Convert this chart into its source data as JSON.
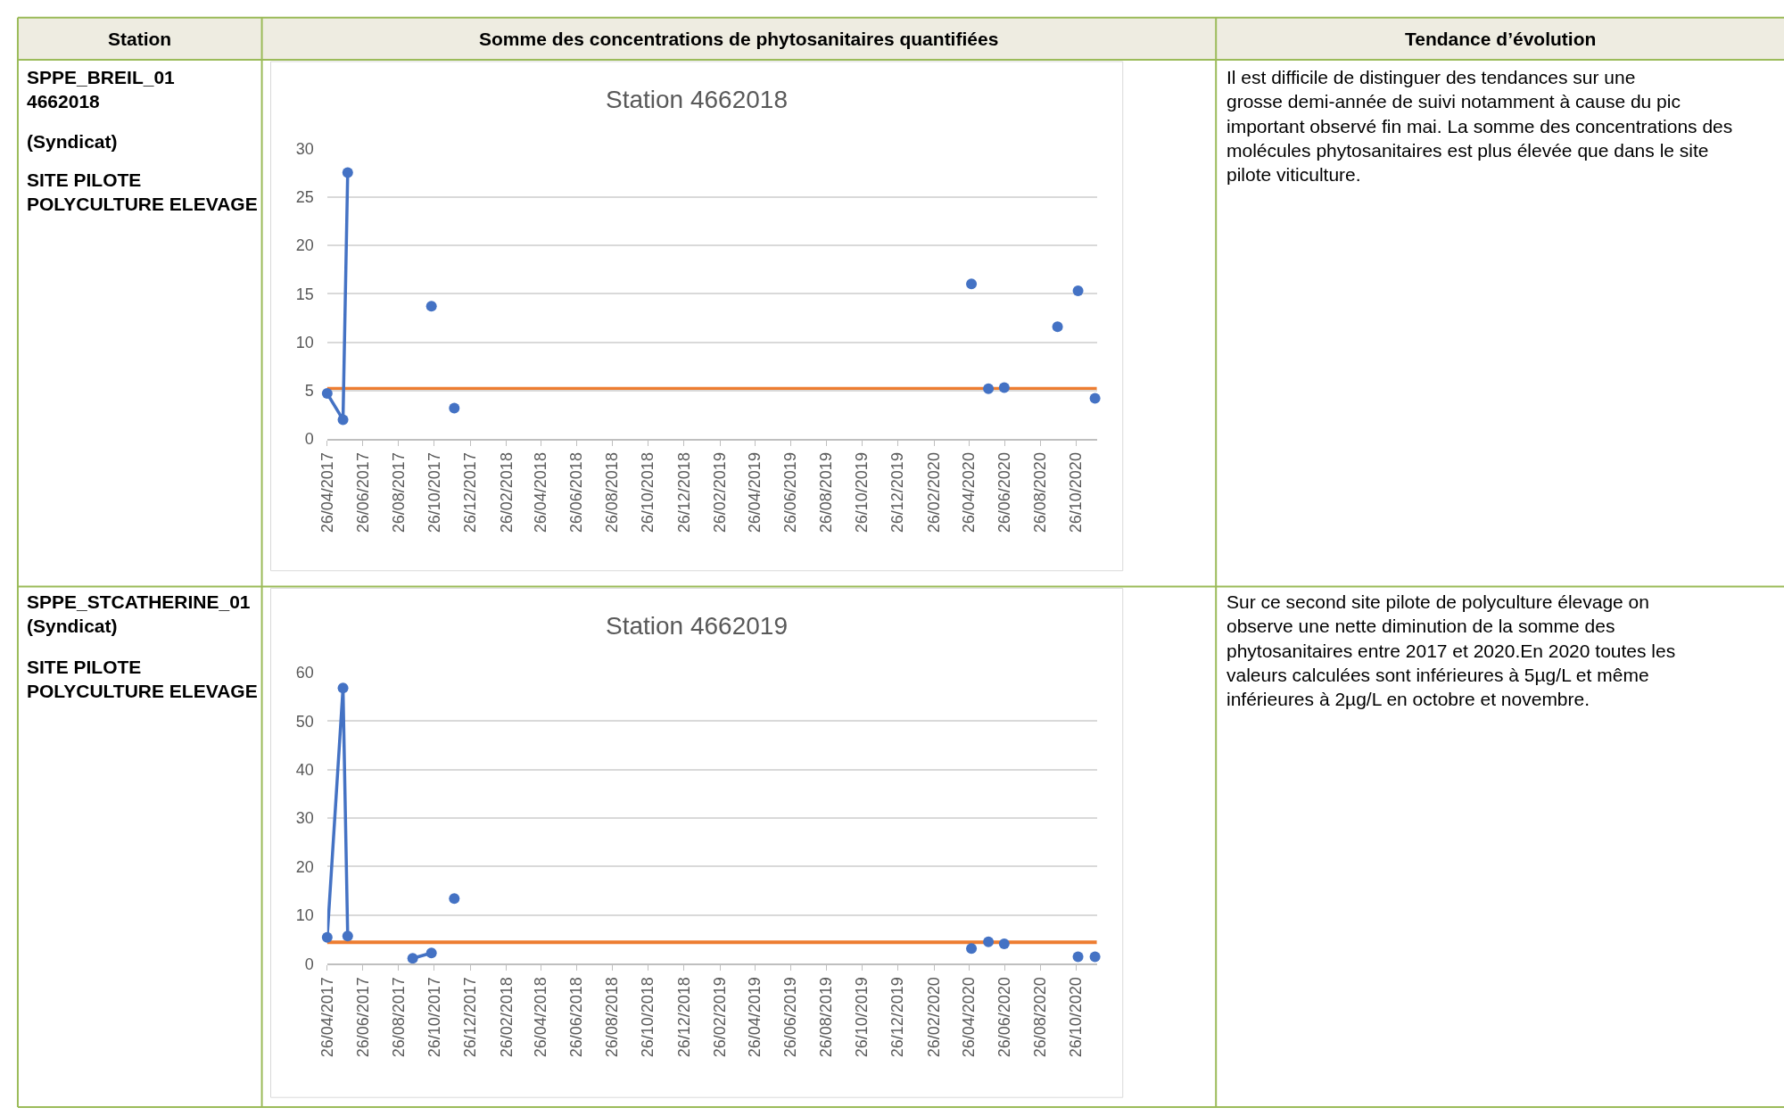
{
  "chart_data": [
    {
      "type": "other",
      "annotations": [
        "Station",
        "Somme des concentrations de phytosanitaires quantifiées",
        "Tendance d’évolution"
      ]
    },
    {
      "type": "other",
      "annotations": [
        "SPPE_BREIL_01 4662018",
        "(Syndicat)",
        "SITE PILOTE POLYCULTURE ELEVAGE"
      ]
    },
    {
      "type": "line",
      "title": "Station 4662018",
      "marker": "circle",
      "grid": "y",
      "ylim": [
        0,
        30
      ],
      "yticks": [
        0,
        5,
        10,
        15,
        20,
        25,
        30
      ],
      "xlim": [
        "2017-04-26",
        "2020-11-30"
      ],
      "xticks": [
        {
          "value": "2017-04-26",
          "label": "26/04/2017"
        },
        {
          "value": "2017-06-26",
          "label": "26/06/2017"
        },
        {
          "value": "2017-08-26",
          "label": "26/08/2017"
        },
        {
          "value": "2017-10-26",
          "label": "26/10/2017"
        },
        {
          "value": "2017-12-26",
          "label": "26/12/2017"
        },
        {
          "value": "2018-02-26",
          "label": "26/02/2018"
        },
        {
          "value": "2018-04-26",
          "label": "26/04/2018"
        },
        {
          "value": "2018-06-26",
          "label": "26/06/2018"
        },
        {
          "value": "2018-08-26",
          "label": "26/08/2018"
        },
        {
          "value": "2018-10-26",
          "label": "26/10/2018"
        },
        {
          "value": "2018-12-26",
          "label": "26/12/2018"
        },
        {
          "value": "2019-02-26",
          "label": "26/02/2019"
        },
        {
          "value": "2019-04-26",
          "label": "26/04/2019"
        },
        {
          "value": "2019-06-26",
          "label": "26/06/2019"
        },
        {
          "value": "2019-08-26",
          "label": "26/08/2019"
        },
        {
          "value": "2019-10-26",
          "label": "26/10/2019"
        },
        {
          "value": "2019-12-26",
          "label": "26/12/2019"
        },
        {
          "value": "2020-02-26",
          "label": "26/02/2020"
        },
        {
          "value": "2020-04-26",
          "label": "26/04/2020"
        },
        {
          "value": "2020-06-26",
          "label": "26/06/2020"
        },
        {
          "value": "2020-08-26",
          "label": "26/08/2020"
        },
        {
          "value": "2020-10-26",
          "label": "26/10/2020"
        }
      ],
      "series": [
        {
          "type": "line",
          "color": "#4472c4",
          "x": [
            "2017-04-26",
            "2017-05-23",
            "2017-05-31"
          ],
          "values": [
            4.7,
            2.0,
            27.5
          ]
        },
        {
          "type": "scatter",
          "color": "#4472c4",
          "x": [
            "2017-10-21",
            "2017-11-29",
            "2020-04-30",
            "2020-05-29",
            "2020-06-25",
            "2020-09-24",
            "2020-10-29",
            "2020-11-27"
          ],
          "values": [
            13.7,
            3.2,
            16.0,
            5.2,
            5.3,
            11.6,
            15.3,
            4.2
          ]
        }
      ],
      "ref_lines": [
        {
          "axis": "y",
          "value": 5.2,
          "color": "#ed7d31"
        }
      ]
    },
    {
      "type": "other",
      "annotations": [
        "Il est difficile de distinguer des tendances sur une grosse demi-année de suivi notamment à cause du pic important observé fin mai. La somme des concentrations des molécules phytosanitaires est plus élevée que dans le site pilote viticulture."
      ]
    },
    {
      "type": "other",
      "annotations": [
        "SPPE_STCATHERINE_01 (Syndicat)",
        "SITE PILOTE POLYCULTURE ELEVAGE"
      ]
    },
    {
      "type": "line",
      "title": "Station 4662019",
      "marker": "circle",
      "grid": "y",
      "ylim": [
        0,
        60
      ],
      "yticks": [
        0,
        10,
        20,
        30,
        40,
        50,
        60
      ],
      "xlim": [
        "2017-04-26",
        "2020-11-30"
      ],
      "xticks": [
        {
          "value": "2017-04-26",
          "label": "26/04/2017"
        },
        {
          "value": "2017-06-26",
          "label": "26/06/2017"
        },
        {
          "value": "2017-08-26",
          "label": "26/08/2017"
        },
        {
          "value": "2017-10-26",
          "label": "26/10/2017"
        },
        {
          "value": "2017-12-26",
          "label": "26/12/2017"
        },
        {
          "value": "2018-02-26",
          "label": "26/02/2018"
        },
        {
          "value": "2018-04-26",
          "label": "26/04/2018"
        },
        {
          "value": "2018-06-26",
          "label": "26/06/2018"
        },
        {
          "value": "2018-08-26",
          "label": "26/08/2018"
        },
        {
          "value": "2018-10-26",
          "label": "26/10/2018"
        },
        {
          "value": "2018-12-26",
          "label": "26/12/2018"
        },
        {
          "value": "2019-02-26",
          "label": "26/02/2019"
        },
        {
          "value": "2019-04-26",
          "label": "26/04/2019"
        },
        {
          "value": "2019-06-26",
          "label": "26/06/2019"
        },
        {
          "value": "2019-08-26",
          "label": "26/08/2019"
        },
        {
          "value": "2019-10-26",
          "label": "26/10/2019"
        },
        {
          "value": "2019-12-26",
          "label": "26/12/2019"
        },
        {
          "value": "2020-02-26",
          "label": "26/02/2020"
        },
        {
          "value": "2020-04-26",
          "label": "26/04/2020"
        },
        {
          "value": "2020-06-26",
          "label": "26/06/2020"
        },
        {
          "value": "2020-08-26",
          "label": "26/08/2020"
        },
        {
          "value": "2020-10-26",
          "label": "26/10/2020"
        }
      ],
      "series": [
        {
          "type": "line",
          "color": "#4472c4",
          "x": [
            "2017-04-26",
            "2017-05-23",
            "2017-05-31"
          ],
          "values": [
            5.4,
            56.8,
            5.7
          ]
        },
        {
          "type": "line",
          "color": "#4472c4",
          "x": [
            "2017-09-19",
            "2017-10-21"
          ],
          "values": [
            1.1,
            2.2
          ]
        },
        {
          "type": "scatter",
          "color": "#4472c4",
          "x": [
            "2017-11-29",
            "2020-04-30",
            "2020-05-29",
            "2020-06-25",
            "2020-10-29",
            "2020-11-27"
          ],
          "values": [
            13.4,
            3.1,
            4.5,
            4.1,
            1.4,
            1.4
          ]
        }
      ],
      "ref_lines": [
        {
          "axis": "y",
          "value": 4.4,
          "color": "#ed7d31"
        }
      ]
    },
    {
      "type": "other",
      "annotations": [
        "Sur ce second site pilote de polyculture élevage on observe une nette diminution de la somme des phytosanitaires entre 2017 et 2020.En 2020 toutes les valeurs calculées sont inférieures à 5µg/L et même inférieures à 2µg/L en octobre et novembre."
      ]
    }
  ]
}
